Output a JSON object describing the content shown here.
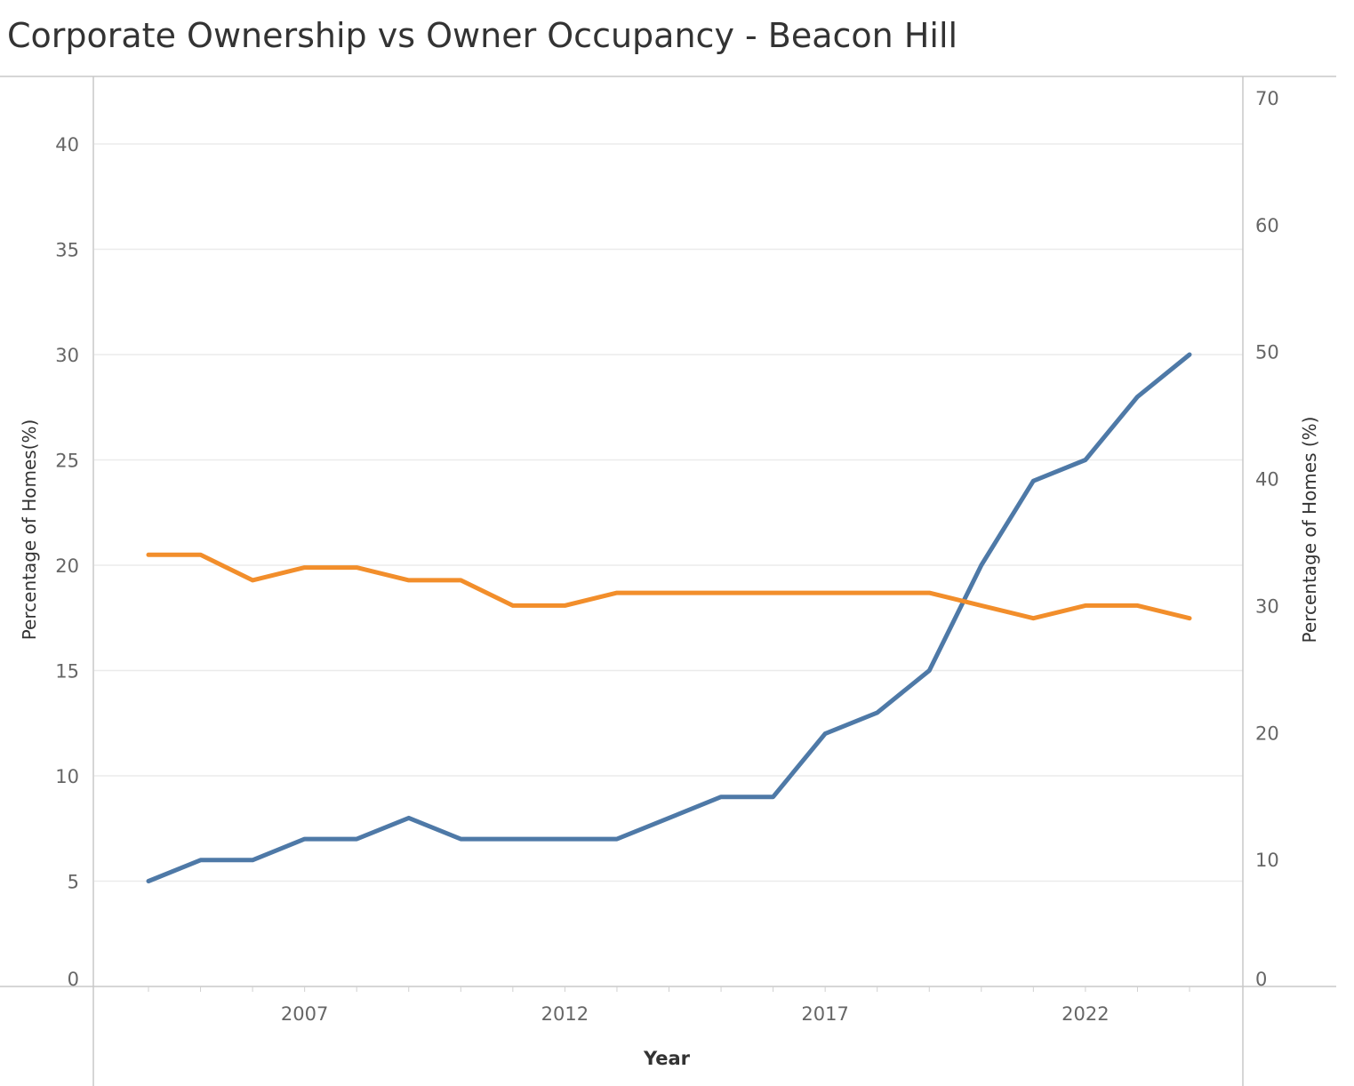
{
  "title": "Corporate Ownership vs Owner Occupancy - Beacon Hill",
  "chart_data": {
    "type": "line",
    "title": "Corporate Ownership vs Owner Occupancy - Beacon Hill",
    "xlabel": "Year",
    "ylabel_left": "Percentage of Homes(%)",
    "ylabel_right": "Percentage of Homes (%)",
    "x": [
      2004,
      2005,
      2006,
      2007,
      2008,
      2009,
      2010,
      2011,
      2012,
      2013,
      2014,
      2015,
      2016,
      2017,
      2018,
      2019,
      2020,
      2021,
      2022,
      2023,
      2024
    ],
    "x_ticks": [
      "2007",
      "2012",
      "2017",
      "2022"
    ],
    "ylim_left": [
      0,
      43
    ],
    "yticks_left": [
      "0",
      "5",
      "10",
      "15",
      "20",
      "25",
      "30",
      "35",
      "40"
    ],
    "ylim_right": [
      0,
      71
    ],
    "yticks_right": [
      "0",
      "10",
      "20",
      "30",
      "40",
      "50",
      "60",
      "70"
    ],
    "grid": true,
    "series": [
      {
        "axis": "left",
        "color": "#4e79a7",
        "values": [
          5,
          6,
          6,
          7,
          7,
          8,
          7,
          7,
          7,
          7,
          8,
          9,
          9,
          12,
          13,
          15,
          20,
          24,
          25,
          28,
          30
        ]
      },
      {
        "axis": "right",
        "color": "#f28e2b",
        "values": [
          34,
          34,
          32,
          33,
          33,
          32,
          32,
          30,
          30,
          31,
          31,
          31,
          31,
          31,
          31,
          31,
          30,
          29,
          30,
          30,
          29
        ]
      }
    ]
  }
}
